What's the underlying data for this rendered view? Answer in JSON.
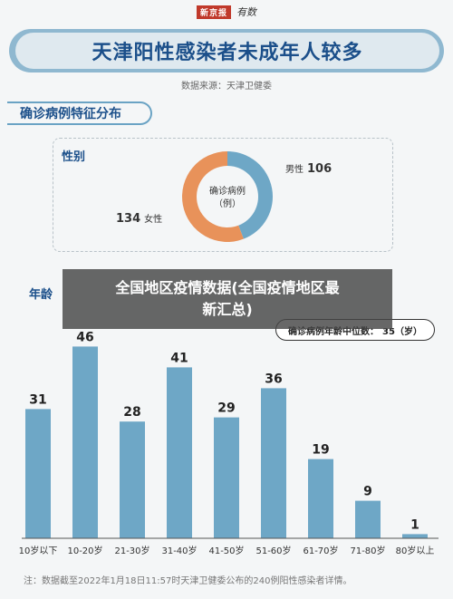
{
  "masthead": {
    "logo": "新京报",
    "sub": "有数"
  },
  "title": "天津阳性感染者未成年人较多",
  "source": "数据来源：天津卫健委",
  "gender_section": {
    "heading": "确诊病例特征分布",
    "label": "性别",
    "center_line1": "确诊病例",
    "center_line2": "（例）",
    "male_label": "男性",
    "female_label": "女性"
  },
  "age_section": {
    "label": "年龄",
    "median_label": "确诊病例年龄中位数：",
    "median_value": "35（岁）"
  },
  "overlay": {
    "line1": "全国地区疫情数据(全国疫情地区最",
    "line2": "新汇总)"
  },
  "note": "注：数据截至2022年1月18日11:57时天津卫健委公布的240例阳性感染者详情。",
  "colors": {
    "bar": "#6ea7c6",
    "male": "#6ea7c6",
    "female": "#e8925a",
    "title": "#1b4f8a"
  },
  "chart_data": [
    {
      "type": "pie",
      "categories": [
        "男性",
        "女性"
      ],
      "values": [
        106,
        134
      ]
    },
    {
      "type": "bar",
      "categories": [
        "10岁以下",
        "10-20岁",
        "21-30岁",
        "31-40岁",
        "41-50岁",
        "51-60岁",
        "61-70岁",
        "71-80岁",
        "80岁以上"
      ],
      "values": [
        31,
        46,
        28,
        41,
        29,
        36,
        19,
        9,
        1
      ],
      "ylim": [
        0,
        50
      ],
      "grid": false
    }
  ]
}
